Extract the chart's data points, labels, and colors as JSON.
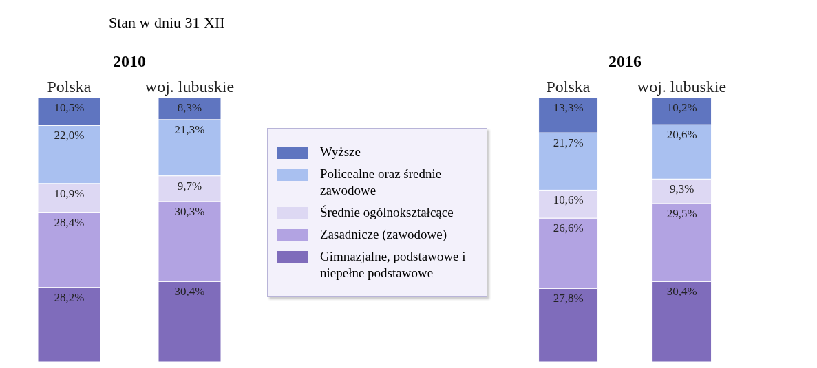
{
  "chart_data": [
    {
      "type": "bar",
      "title": "2010",
      "subtitle": "Stan w dniu 31 XII",
      "stacked": true,
      "categories": [
        "Polska",
        "woj. lubuskie"
      ],
      "series": [
        {
          "color": "#7f6cbb",
          "values": [
            28.2,
            30.4
          ],
          "value_labels": [
            "28,2%",
            "30,4%"
          ]
        },
        {
          "color": "#b2a3e2",
          "values": [
            28.4,
            30.3
          ],
          "value_labels": [
            "28,4%",
            "30,3%"
          ]
        },
        {
          "color": "#ddd8f3",
          "values": [
            10.9,
            9.7
          ],
          "value_labels": [
            "10,9%",
            "9,7%"
          ]
        },
        {
          "color": "#a9c0f0",
          "values": [
            22.0,
            21.3
          ],
          "value_labels": [
            "22,0%",
            "21,3%"
          ]
        },
        {
          "color": "#5f75c0",
          "values": [
            10.5,
            8.3
          ],
          "value_labels": [
            "10,5%",
            "8,3%"
          ]
        }
      ]
    },
    {
      "type": "bar",
      "title": "2016",
      "stacked": true,
      "legend": "left",
      "categories": [
        "Polska",
        "woj. lubuskie"
      ],
      "series": [
        {
          "name": "Gimnazjalne, podstawowe i niepełne podstawowe",
          "color": "#7f6cbb",
          "values": [
            27.8,
            30.4
          ],
          "value_labels": [
            "27,8%",
            "30,4%"
          ]
        },
        {
          "name": "Zasadnicze (zawodowe)",
          "color": "#b2a3e2",
          "values": [
            26.6,
            29.5
          ],
          "value_labels": [
            "26,6%",
            "29,5%"
          ]
        },
        {
          "name": "Średnie ogólnokształcące",
          "color": "#ddd8f3",
          "values": [
            10.6,
            9.3
          ],
          "value_labels": [
            "10,6%",
            "9,3%"
          ]
        },
        {
          "name": "Policealne oraz średnie zawodowe",
          "color": "#a9c0f0",
          "values": [
            21.7,
            20.6
          ],
          "value_labels": [
            "21,7%",
            "20,6%"
          ]
        },
        {
          "name": "Wyższe",
          "color": "#5f75c0",
          "values": [
            13.3,
            10.2
          ],
          "value_labels": [
            "13,3%",
            "10,2%"
          ]
        }
      ]
    }
  ]
}
